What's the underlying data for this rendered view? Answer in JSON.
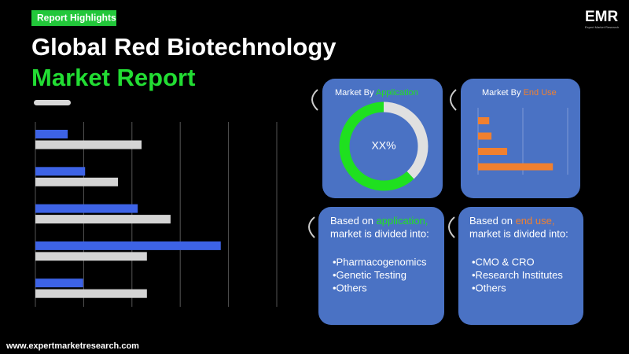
{
  "header": {
    "tag": "Report Highlights",
    "title_line1": "Global Red Biotechnology",
    "title_line2": "Market Report",
    "logo": "EMR",
    "logo_sub": "Expert Market Research"
  },
  "bar_chart": {
    "xlim": [
      0,
      5
    ],
    "xticks": [
      0,
      1,
      2,
      3,
      4,
      5
    ],
    "series": [
      {
        "color": "#3d63e6",
        "values": [
          0.67,
          1.03,
          2.12,
          3.84,
          0.99
        ]
      },
      {
        "color": "#d4d4d4",
        "values": [
          2.2,
          1.71,
          2.8,
          2.31,
          2.31
        ]
      }
    ]
  },
  "cards": {
    "application_chart": {
      "title_prefix": "Market By",
      "title_highlight": "Application",
      "center_label": "XX%",
      "values": [
        62,
        38
      ],
      "colors": [
        "#1fe01f",
        "#e0e0e0"
      ]
    },
    "end_use_chart": {
      "title_prefix": "Market By",
      "title_highlight": "End Use",
      "xlim": [
        0,
        2
      ],
      "xticks": [
        0,
        1,
        2
      ],
      "color": "#f08030",
      "values": [
        0.25,
        0.3,
        0.65,
        1.67
      ]
    },
    "application_text": {
      "line1_prefix": "Based on",
      "line1_highlight": "application,",
      "line2": "market is divided into:",
      "items": [
        "•Pharmacogenomics",
        "•Genetic Testing",
        "•Others"
      ]
    },
    "end_use_text": {
      "line1_prefix": "Based on",
      "line1_highlight": "end use,",
      "line2": "market is divided into:",
      "items": [
        "•CMO & CRO",
        "•Research Institutes",
        "•Others"
      ]
    }
  },
  "footer": {
    "url": "www.expertmarketresearch.com"
  }
}
